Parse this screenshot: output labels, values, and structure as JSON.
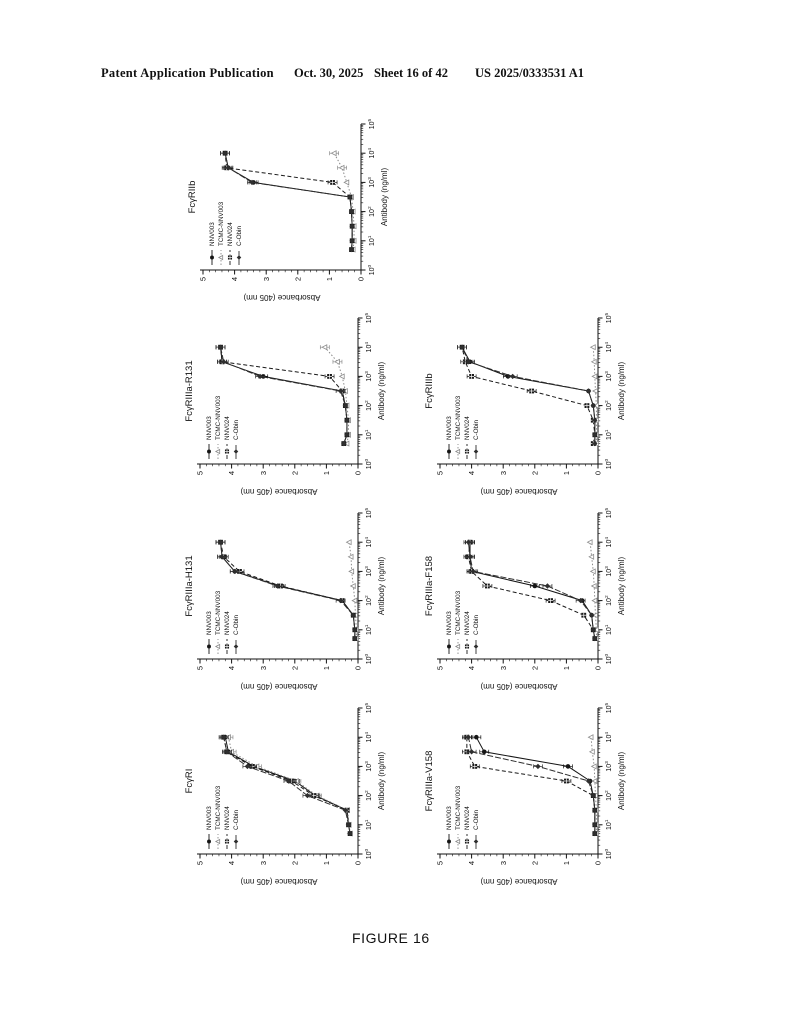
{
  "header": {
    "publication": "Patent Application Publication",
    "date": "Oct. 30, 2025",
    "sheet": "Sheet 16 of 42",
    "patent_number": "US 2025/0333531 A1"
  },
  "figure": {
    "caption": "FIGURE 16"
  },
  "chart_common": {
    "type": "line",
    "xlabel": "Antibody (ng/ml)",
    "ylabel": "Absorbance (405 nm)",
    "x_scale": "log",
    "xlim": [
      1,
      100000
    ],
    "x_tick_labels": [
      "10^0",
      "10^1",
      "10^2",
      "10^3",
      "10^4",
      "10^5"
    ],
    "ylim": [
      0,
      5
    ],
    "yticks": [
      0,
      1,
      2,
      3,
      4,
      5
    ],
    "grid": false,
    "legend_position": "upper-left",
    "legend": [
      "NNV003",
      "TCMC-NNV003",
      "NNV024",
      "C-Obin"
    ],
    "rotation_note": "each panel printed rotated 90 degrees counterclockwise",
    "x": [
      5,
      10,
      31.6,
      100,
      316,
      1000,
      3162,
      10000
    ],
    "series_styles": {
      "NNV003": {
        "color": "#151515",
        "marker": "circle",
        "dash": ""
      },
      "TCMC-NNV003": {
        "color": "#8a8a8a",
        "marker": "triangle",
        "dash": "1.5,2"
      },
      "NNV024": {
        "color": "#1a1a1a",
        "marker": "square-hatch",
        "dash": "4,2.5"
      },
      "C-Obin": {
        "color": "#2f2f2f",
        "marker": "diamond",
        "dash": "6,2"
      }
    }
  },
  "chart_data": [
    {
      "type": "line",
      "title": "FcγRIIb",
      "series": [
        {
          "name": "NNV003",
          "values": [
            0.3,
            0.28,
            0.28,
            0.3,
            0.35,
            3.4,
            4.2,
            4.3
          ]
        },
        {
          "name": "TCMC-NNV003",
          "values": [
            0.25,
            0.22,
            0.22,
            0.25,
            0.3,
            0.45,
            0.6,
            0.85
          ]
        },
        {
          "name": "NNV024",
          "values": [
            0.3,
            0.28,
            0.28,
            0.3,
            0.35,
            0.9,
            4.25,
            4.3
          ]
        },
        {
          "name": "C-Obin",
          "values": [
            0.3,
            0.28,
            0.28,
            0.3,
            0.35,
            3.45,
            4.2,
            4.3
          ]
        }
      ]
    },
    {
      "type": "line",
      "title": "FcγRIIIa-R131",
      "series": [
        {
          "name": "NNV003",
          "values": [
            0.45,
            0.35,
            0.35,
            0.4,
            0.5,
            3.0,
            4.3,
            4.35
          ]
        },
        {
          "name": "TCMC-NNV003",
          "values": [
            0.35,
            0.3,
            0.3,
            0.35,
            0.4,
            0.5,
            0.65,
            1.05
          ]
        },
        {
          "name": "NNV024",
          "values": [
            0.45,
            0.35,
            0.35,
            0.4,
            0.5,
            0.9,
            4.3,
            4.35
          ]
        },
        {
          "name": "C-Obin",
          "values": [
            0.45,
            0.35,
            0.35,
            0.4,
            0.55,
            3.1,
            4.25,
            4.35
          ]
        }
      ]
    },
    {
      "type": "line",
      "title": "FcγRIIIb",
      "series": [
        {
          "name": "NNV003",
          "values": [
            0.1,
            0.1,
            0.1,
            0.15,
            0.3,
            2.85,
            4.05,
            4.3
          ]
        },
        {
          "name": "TCMC-NNV003",
          "values": [
            0.05,
            0.05,
            0.05,
            0.05,
            0.08,
            0.1,
            0.12,
            0.15
          ]
        },
        {
          "name": "NNV024",
          "values": [
            0.15,
            0.1,
            0.15,
            0.35,
            2.1,
            4.0,
            4.2,
            4.3
          ]
        },
        {
          "name": "C-Obin",
          "values": [
            0.1,
            0.1,
            0.1,
            0.15,
            0.3,
            2.7,
            4.1,
            4.3
          ]
        }
      ]
    },
    {
      "type": "line",
      "title": "FcγRIIIa-H131",
      "series": [
        {
          "name": "NNV003",
          "values": [
            0.1,
            0.1,
            0.15,
            0.5,
            2.5,
            3.9,
            4.3,
            4.35
          ]
        },
        {
          "name": "TCMC-NNV003",
          "values": [
            0.05,
            0.05,
            0.08,
            0.1,
            0.15,
            0.2,
            0.22,
            0.28
          ]
        },
        {
          "name": "NNV024",
          "values": [
            0.1,
            0.1,
            0.15,
            0.5,
            2.45,
            3.75,
            4.25,
            4.35
          ]
        },
        {
          "name": "C-Obin",
          "values": [
            0.1,
            0.1,
            0.15,
            0.55,
            2.55,
            3.9,
            4.3,
            4.35
          ]
        }
      ]
    },
    {
      "type": "line",
      "title": "FcγRIIIa-F158",
      "series": [
        {
          "name": "NNV003",
          "values": [
            0.1,
            0.15,
            0.2,
            0.5,
            2.0,
            4.0,
            4.05,
            4.05
          ]
        },
        {
          "name": "TCMC-NNV003",
          "values": [
            0.05,
            0.05,
            0.08,
            0.1,
            0.12,
            0.15,
            0.2,
            0.25
          ]
        },
        {
          "name": "NNV024",
          "values": [
            0.1,
            0.15,
            0.45,
            1.5,
            3.5,
            4.0,
            4.1,
            4.05
          ]
        },
        {
          "name": "C-Obin",
          "values": [
            0.1,
            0.15,
            0.2,
            0.55,
            1.6,
            3.95,
            4.05,
            4.1
          ]
        }
      ]
    },
    {
      "type": "line",
      "title": "FcγRI",
      "series": [
        {
          "name": "NNV003",
          "values": [
            0.25,
            0.3,
            0.35,
            1.35,
            2.0,
            3.3,
            4.1,
            4.2
          ]
        },
        {
          "name": "TCMC-NNV003",
          "values": [
            0.25,
            0.28,
            0.33,
            1.3,
            1.95,
            3.2,
            4.0,
            4.1
          ]
        },
        {
          "name": "NNV024",
          "values": [
            0.25,
            0.3,
            0.35,
            1.4,
            2.1,
            3.35,
            4.15,
            4.25
          ]
        },
        {
          "name": "C-Obin",
          "values": [
            0.25,
            0.3,
            0.4,
            1.6,
            2.2,
            3.5,
            4.15,
            4.25
          ]
        }
      ]
    },
    {
      "type": "line",
      "title": "FcγRIIIa-V158",
      "series": [
        {
          "name": "NNV003",
          "values": [
            0.1,
            0.1,
            0.1,
            0.15,
            0.25,
            0.95,
            3.6,
            3.85
          ]
        },
        {
          "name": "TCMC-NNV003",
          "values": [
            0.05,
            0.05,
            0.05,
            0.08,
            0.1,
            0.12,
            0.18,
            0.22
          ]
        },
        {
          "name": "NNV024",
          "values": [
            0.1,
            0.1,
            0.1,
            0.15,
            1.0,
            3.9,
            4.15,
            4.15
          ]
        },
        {
          "name": "C-Obin",
          "values": [
            0.1,
            0.1,
            0.1,
            0.15,
            0.3,
            1.9,
            4.0,
            4.1
          ]
        }
      ]
    }
  ]
}
